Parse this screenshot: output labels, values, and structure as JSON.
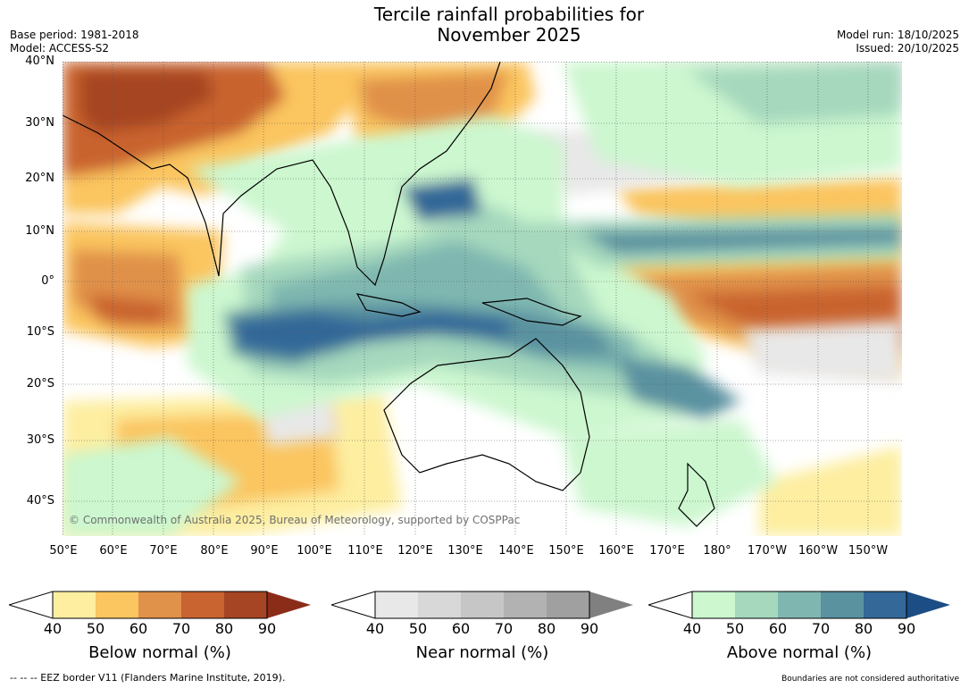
{
  "title_line1": "Tercile rainfall probabilities for",
  "title_line2": "November 2025",
  "base_period": "Base period: 1981-2018",
  "model": "Model: ACCESS-S2",
  "model_run": "Model run: 18/10/2025",
  "issued": "Issued: 20/10/2025",
  "lat_labels": [
    "40°N",
    "30°N",
    "20°N",
    "10°N",
    "0°",
    "10°S",
    "20°S",
    "30°S",
    "40°S"
  ],
  "lon_labels": [
    "50°E",
    "60°E",
    "70°E",
    "80°E",
    "90°E",
    "100°E",
    "110°E",
    "120°E",
    "130°E",
    "140°E",
    "150°E",
    "160°E",
    "170°E",
    "180°",
    "170°W",
    "160°W",
    "150°W"
  ],
  "copyright": "© Commonwealth of Australia 2025, Bureau of Meteorology, supported by COSPPac",
  "colorbars": [
    {
      "label": "Below normal (%)",
      "ticks": [
        "40",
        "50",
        "60",
        "70",
        "80",
        "90"
      ],
      "colors": [
        "#fdeea0",
        "#fbc55f",
        "#e0914a",
        "#c9632f",
        "#a64523"
      ],
      "extend": "#8b2c19"
    },
    {
      "label": "Near normal (%)",
      "ticks": [
        "40",
        "50",
        "60",
        "70",
        "80",
        "90"
      ],
      "colors": [
        "#e8e8e8",
        "#d8d8d8",
        "#c6c6c6",
        "#b2b2b2",
        "#a0a0a0"
      ],
      "extend": "#808080"
    },
    {
      "label": "Above normal (%)",
      "ticks": [
        "40",
        "50",
        "60",
        "70",
        "80",
        "90"
      ],
      "colors": [
        "#ccf7cf",
        "#a5d8bd",
        "#7fb7b0",
        "#5a92a0",
        "#336898"
      ],
      "extend": "#1c4d84"
    }
  ],
  "footer_left": "--  --  -- EEZ border V11 (Flanders Marine Institute, 2019).",
  "footer_right": "Boundaries are not considered authoritative"
}
